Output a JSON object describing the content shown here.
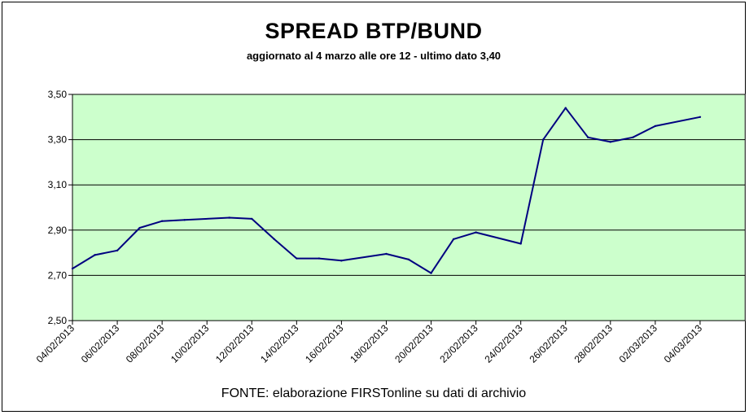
{
  "chart_data": {
    "type": "line",
    "title": "SPREAD  BTP/BUND",
    "subtitle": "aggiornato al 4 marzo alle ore 12 - ultimo dato 3,40",
    "source_note": "FONTE: elaborazione FIRSTonline su dati di archivio",
    "xlim": [
      "04/02/2013",
      "06/03/2013"
    ],
    "ylim": [
      2.5,
      3.5
    ],
    "y_ticks": [
      "2,50",
      "2,70",
      "2,90",
      "3,10",
      "3,30",
      "3,50"
    ],
    "x_ticks": [
      "04/02/2013",
      "06/02/2013",
      "08/02/2013",
      "10/02/2013",
      "12/02/2013",
      "14/02/2013",
      "16/02/2013",
      "18/02/2013",
      "20/02/2013",
      "22/02/2013",
      "24/02/2013",
      "26/02/2013",
      "28/02/2013",
      "02/03/2013",
      "04/03/2013"
    ],
    "grid": true,
    "plot_background": "#ccffcc",
    "line_color": "#000080",
    "series": [
      {
        "x": [
          "04/02/2013",
          "05/02/2013",
          "06/02/2013",
          "07/02/2013",
          "08/02/2013",
          "09/02/2013",
          "11/02/2013",
          "12/02/2013",
          "13/02/2013",
          "14/02/2013",
          "15/02/2013",
          "16/02/2013",
          "18/02/2013",
          "19/02/2013",
          "20/02/2013",
          "21/02/2013",
          "22/02/2013",
          "24/02/2013",
          "25/02/2013",
          "26/02/2013",
          "27/02/2013",
          "28/02/2013",
          "01/03/2013",
          "02/03/2013",
          "04/03/2013"
        ],
        "values": [
          2.73,
          2.79,
          2.81,
          2.91,
          2.94,
          2.945,
          2.955,
          2.95,
          2.86,
          2.775,
          2.775,
          2.765,
          2.795,
          2.77,
          2.71,
          2.86,
          2.89,
          2.84,
          3.3,
          3.44,
          3.31,
          3.29,
          3.31,
          3.36,
          3.4
        ]
      }
    ]
  }
}
